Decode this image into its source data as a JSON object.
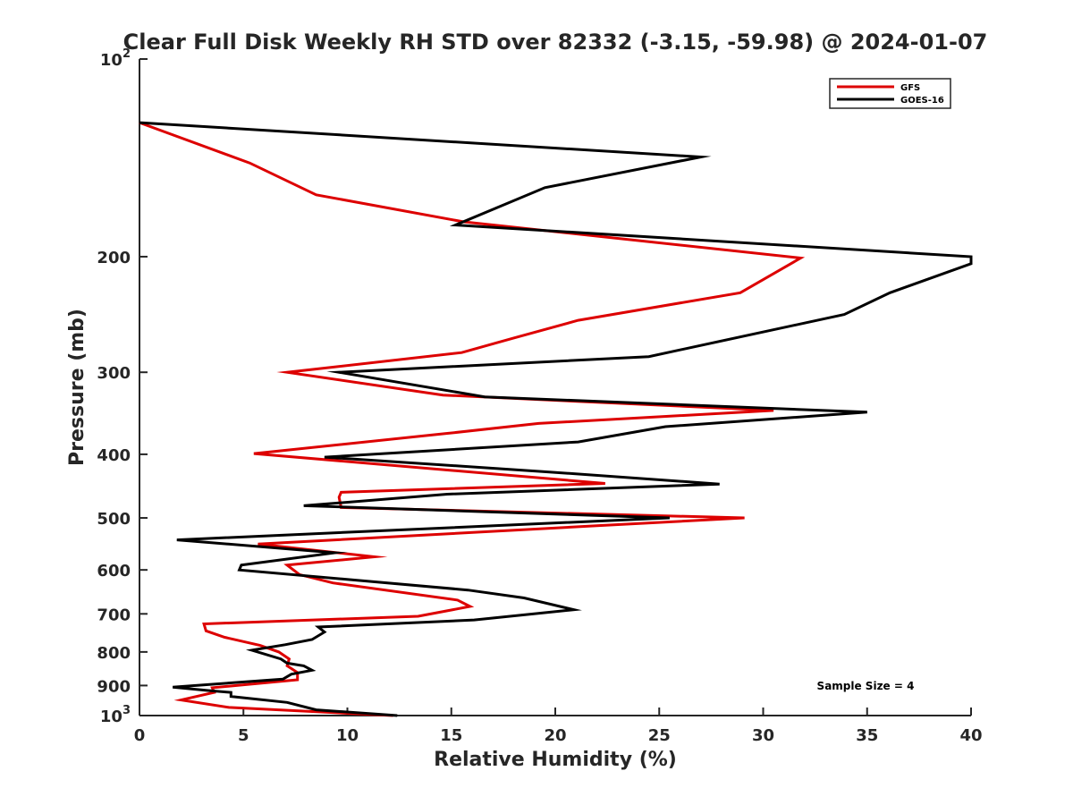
{
  "chart_data": {
    "type": "line",
    "title": "Clear Full Disk Weekly RH STD over 82332 (-3.15, -59.98) @ 2024-01-07",
    "xlabel": "Relative Humidity (%)",
    "ylabel": "Pressure (mb)",
    "xlim": [
      0,
      40
    ],
    "ylim": [
      100,
      1000
    ],
    "y_scale": "log",
    "y_reversed": true,
    "grid": false,
    "legend_position": "top-right",
    "annotation": "Sample Size = 4",
    "x_ticks": [
      0,
      5,
      10,
      15,
      20,
      25,
      30,
      35,
      40
    ],
    "x_tick_labels": [
      "0",
      "5",
      "10",
      "15",
      "20",
      "25",
      "30",
      "35",
      "40"
    ],
    "y_ticks": [
      100,
      200,
      300,
      400,
      500,
      600,
      700,
      800,
      900,
      1000
    ],
    "y_tick_labels": [
      {
        "base": "10",
        "exp": "2"
      },
      {
        "base": "200",
        "exp": ""
      },
      {
        "base": "300",
        "exp": ""
      },
      {
        "base": "400",
        "exp": ""
      },
      {
        "base": "500",
        "exp": ""
      },
      {
        "base": "600",
        "exp": ""
      },
      {
        "base": "700",
        "exp": ""
      },
      {
        "base": "800",
        "exp": ""
      },
      {
        "base": "900",
        "exp": ""
      },
      {
        "base": "10",
        "exp": "3"
      }
    ],
    "series": [
      {
        "name": "GFS",
        "color": "#dd0000",
        "points": [
          [
            12.2,
            1000
          ],
          [
            4.3,
            972
          ],
          [
            2.0,
            947
          ],
          [
            3.6,
            922
          ],
          [
            3.5,
            907
          ],
          [
            7.6,
            882
          ],
          [
            7.6,
            860
          ],
          [
            7.1,
            840
          ],
          [
            7.2,
            820
          ],
          [
            6.7,
            800
          ],
          [
            5.8,
            782
          ],
          [
            4.1,
            760
          ],
          [
            3.2,
            743
          ],
          [
            3.1,
            725
          ],
          [
            13.4,
            706
          ],
          [
            15.9,
            682
          ],
          [
            15.3,
            667
          ],
          [
            9.3,
            628
          ],
          [
            7.7,
            610
          ],
          [
            7.1,
            590
          ],
          [
            11.3,
            573
          ],
          [
            5.7,
            548
          ],
          [
            22.0,
            514
          ],
          [
            29.1,
            500
          ],
          [
            9.7,
            482
          ],
          [
            9.6,
            465
          ],
          [
            9.7,
            457
          ],
          [
            22.4,
            443
          ],
          [
            5.5,
            399
          ],
          [
            14.7,
            372
          ],
          [
            19.2,
            359
          ],
          [
            30.5,
            343
          ],
          [
            14.6,
            325
          ],
          [
            7.1,
            300
          ],
          [
            15.5,
            280
          ],
          [
            18.0,
            266
          ],
          [
            21.1,
            250
          ],
          [
            28.9,
            227
          ],
          [
            31.8,
            201
          ],
          [
            15.6,
            177
          ],
          [
            8.5,
            161
          ],
          [
            5.3,
            144
          ],
          [
            0,
            125
          ]
        ]
      },
      {
        "name": "GOES-16",
        "color": "#000000",
        "points": [
          [
            12.4,
            1000
          ],
          [
            8.5,
            980
          ],
          [
            7.1,
            955
          ],
          [
            4.4,
            935
          ],
          [
            4.4,
            922
          ],
          [
            3.3,
            916
          ],
          [
            1.6,
            905
          ],
          [
            6.9,
            880
          ],
          [
            7.3,
            865
          ],
          [
            8.3,
            853
          ],
          [
            7.9,
            840
          ],
          [
            7.1,
            832
          ],
          [
            6.8,
            820
          ],
          [
            5.4,
            795
          ],
          [
            7.0,
            780
          ],
          [
            8.3,
            766
          ],
          [
            8.9,
            746
          ],
          [
            8.6,
            733
          ],
          [
            16.1,
            715
          ],
          [
            20.9,
            690
          ],
          [
            18.5,
            662
          ],
          [
            15.8,
            644
          ],
          [
            4.8,
            600
          ],
          [
            4.9,
            590
          ],
          [
            9.4,
            565
          ],
          [
            1.8,
            540
          ],
          [
            25.5,
            500
          ],
          [
            7.9,
            479
          ],
          [
            14.8,
            460
          ],
          [
            27.9,
            444
          ],
          [
            19.4,
            425
          ],
          [
            8.9,
            404
          ],
          [
            21.1,
            383
          ],
          [
            25.3,
            363
          ],
          [
            35.0,
            345
          ],
          [
            16.6,
            327
          ],
          [
            9.6,
            300
          ],
          [
            24.5,
            284
          ],
          [
            33.9,
            245
          ],
          [
            36.1,
            227
          ],
          [
            40.0,
            205
          ],
          [
            40.0,
            200
          ],
          [
            15.2,
            179
          ],
          [
            19.5,
            157
          ],
          [
            27.0,
            141
          ],
          [
            0,
            125
          ]
        ]
      }
    ]
  }
}
